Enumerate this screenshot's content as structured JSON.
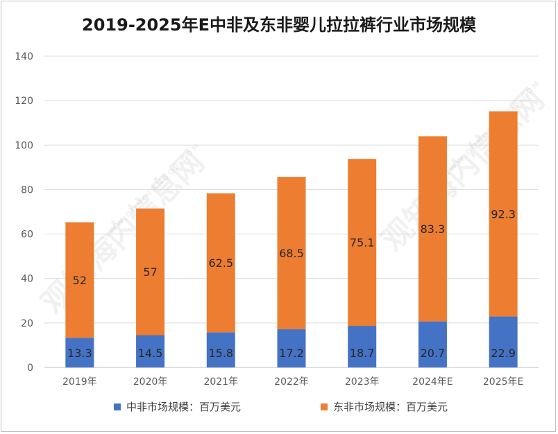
{
  "chart_data": {
    "type": "bar",
    "stacked": true,
    "title": "2019-2025年E中非及东非婴儿拉拉裤行业市场规模",
    "categories": [
      "2019年",
      "2020年",
      "2021年",
      "2022年",
      "2023年",
      "2024年E",
      "2025年E"
    ],
    "series": [
      {
        "name": "中非市场规模：百万美元",
        "values": [
          13.3,
          14.5,
          15.8,
          17.2,
          18.7,
          20.7,
          22.9
        ],
        "color": "#4472c4"
      },
      {
        "name": "东非市场规模：百万美元",
        "values": [
          52,
          57,
          62.5,
          68.5,
          75.1,
          83.3,
          92.3
        ],
        "color": "#ed7d31"
      }
    ],
    "ylim": [
      0,
      140
    ],
    "yticks": [
      0,
      20,
      40,
      60,
      80,
      100,
      120,
      140
    ],
    "grid": true,
    "legend_position": "bottom"
  },
  "watermark": {
    "text": "观知海内信息网",
    "subtext": "WWW.DONGFANGQB.COM"
  }
}
